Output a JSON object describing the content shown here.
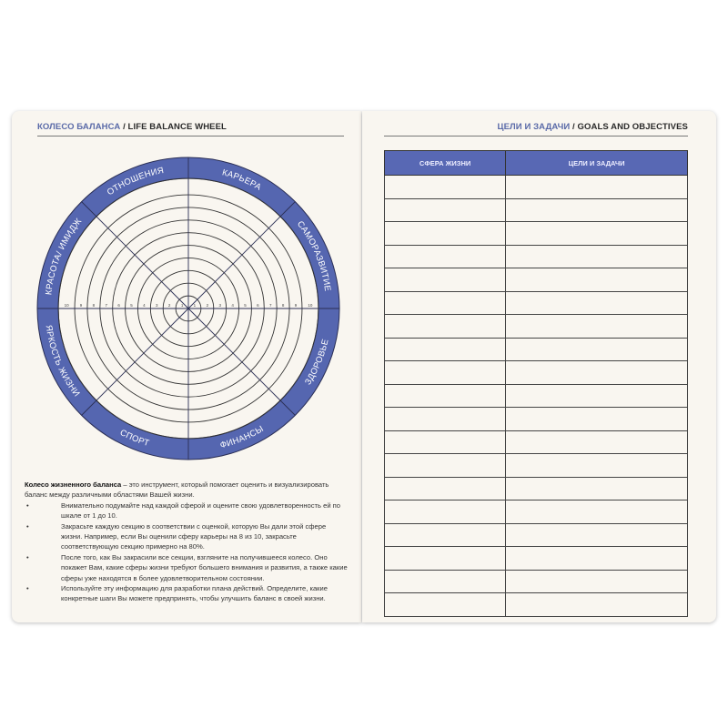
{
  "left_page": {
    "title_ru": "КОЛЕСО БАЛАНСА",
    "title_sep": " / ",
    "title_en": "LIFE BALANCE WHEEL",
    "wheel": {
      "segments": [
        "ОТНОШЕНИЯ",
        "КАРЬЕРА",
        "САМОРАЗВИТИЕ",
        "ЗДОРОВЬЕ",
        "ФИНАНСЫ",
        "СПОРТ",
        "ЯРКОСТЬ ЖИЗНИ",
        "КРАСОТА/ ИМИДЖ"
      ],
      "scale": [
        "1",
        "2",
        "3",
        "4",
        "5",
        "6",
        "7",
        "8",
        "9",
        "10"
      ],
      "ring_color": "#5566b0"
    },
    "description": {
      "lead_bold": "Колесо жизненного баланса",
      "lead_rest": " – это инструмент, который помогает оценить и визуализировать баланс между различными областями Вашей жизни.",
      "bullets": [
        "Внимательно подумайте над каждой сферой и оцените свою удовлетворенность ей по шкале от 1 до 10.",
        "Закрасьте каждую секцию в соответствии с оценкой, которую Вы дали этой сфере жизни. Например, если Вы оценили сферу карьеры на 8 из 10, закрасьте соответствующую секцию примерно на 80%.",
        "После того, как Вы закрасили все секции, взгляните на получившееся колесо. Оно покажет Вам, какие сферы жизни требуют большего внимания и развития, а также какие сферы уже находятся в более удовлетворительном состоянии.",
        "Используйте эту информацию для разработки плана действий. Определите, какие конкретные шаги Вы можете предпринять, чтобы улучшить баланс в своей жизни."
      ]
    }
  },
  "right_page": {
    "title_ru": "ЦЕЛИ И ЗАДАЧИ",
    "title_sep": " / ",
    "title_en": "GOALS AND OBJECTIVES",
    "table": {
      "headers": [
        "СФЕРА ЖИЗНИ",
        "ЦЕЛИ И ЗАДАЧИ"
      ],
      "empty_rows": 19,
      "header_color": "#5868b4"
    }
  }
}
